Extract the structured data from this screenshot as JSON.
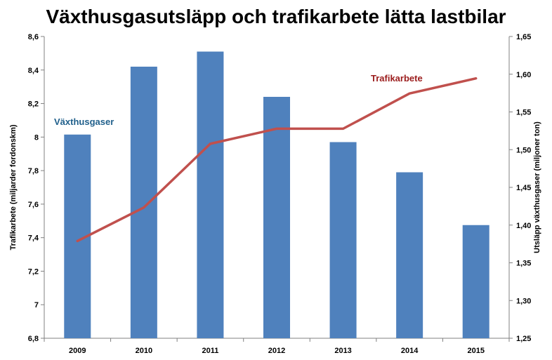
{
  "chart_data": {
    "type": "bar+line",
    "title": "Växthusgasutsläpp och trafikarbete lätta lastbilar",
    "categories": [
      "2009",
      "2010",
      "2011",
      "2012",
      "2013",
      "2014",
      "2015"
    ],
    "left_axis": {
      "label": "Trafikarbete (miljarder fordonskm)",
      "ylim": [
        6.8,
        8.6
      ],
      "ticks": [
        "6,8",
        "7",
        "7,2",
        "7,4",
        "7,6",
        "7,8",
        "8",
        "8,2",
        "8,4",
        "8,6"
      ]
    },
    "right_axis": {
      "label": "Utsläpp växthusgaser (miljoner ton)",
      "ylim": [
        1.25,
        1.65
      ],
      "ticks": [
        "1,25",
        "1,30",
        "1,35",
        "1,40",
        "1,45",
        "1,50",
        "1,55",
        "1,60",
        "1,65"
      ]
    },
    "series": [
      {
        "name": "Växthusgaser",
        "type": "bar",
        "axis": "right",
        "color": "#4f81bd",
        "label_color": "#1f5f8b",
        "values": [
          1.52,
          1.61,
          1.63,
          1.57,
          1.51,
          1.47,
          1.4
        ]
      },
      {
        "name": "Trafikarbete",
        "type": "line",
        "axis": "left",
        "color": "#c0504d",
        "label_color": "#9b1c1c",
        "values": [
          7.38,
          7.58,
          7.96,
          8.05,
          8.05,
          8.26,
          8.35
        ]
      }
    ],
    "grid": false,
    "legend": "inline labels"
  }
}
